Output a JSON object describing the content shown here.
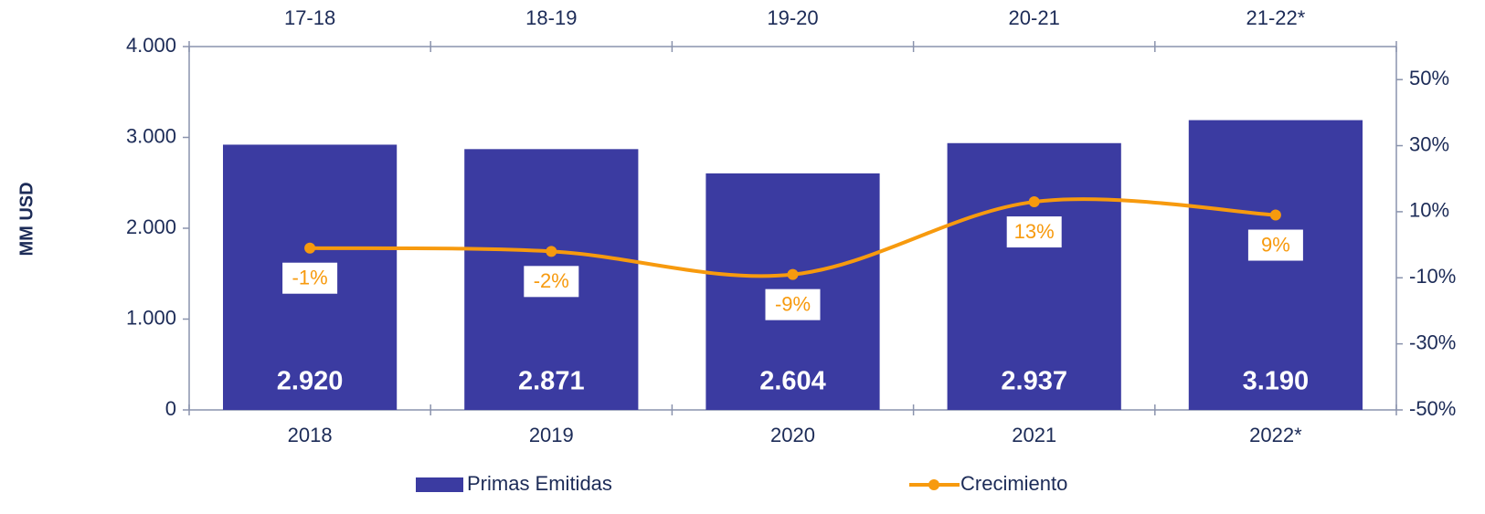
{
  "chart_data": {
    "type": "bar",
    "y_label": "MM USD",
    "categories": [
      "2018",
      "2019",
      "2020",
      "2021",
      "2022*"
    ],
    "top_categories": [
      "17-18",
      "18-19",
      "19-20",
      "20-21",
      "21-22*"
    ],
    "series": [
      {
        "name": "Primas Emitidas",
        "type": "bar",
        "color": "#3b3ba1",
        "values": [
          2920,
          2871,
          2604,
          2937,
          3190
        ],
        "value_labels": [
          "2.920",
          "2.871",
          "2.604",
          "2.937",
          "3.190"
        ]
      },
      {
        "name": "Crecimiento",
        "type": "line",
        "axis": "y2",
        "color": "#f79a0e",
        "values": [
          -1,
          -2,
          -9,
          13,
          9
        ],
        "value_labels": [
          "-1%",
          "-2%",
          "-9%",
          "13%",
          "9%"
        ]
      }
    ],
    "ylim": [
      0,
      4000
    ],
    "yticks": [
      0,
      {
        "value": 1000,
        "label": "1.000"
      },
      {
        "value": 2000,
        "label": "2.000"
      },
      {
        "value": 3000,
        "label": "3.000"
      },
      {
        "value": 4000,
        "label": "4.000"
      }
    ],
    "y2lim": [
      -50,
      60
    ],
    "y2ticks": [
      {
        "value": -50,
        "label": "-50%"
      },
      {
        "value": -30,
        "label": "-30%"
      },
      {
        "value": -10,
        "label": "-10%"
      },
      {
        "value": 10,
        "label": "10%"
      },
      {
        "value": 30,
        "label": "30%"
      },
      {
        "value": 50,
        "label": "50%"
      }
    ],
    "legend": "bottom"
  }
}
